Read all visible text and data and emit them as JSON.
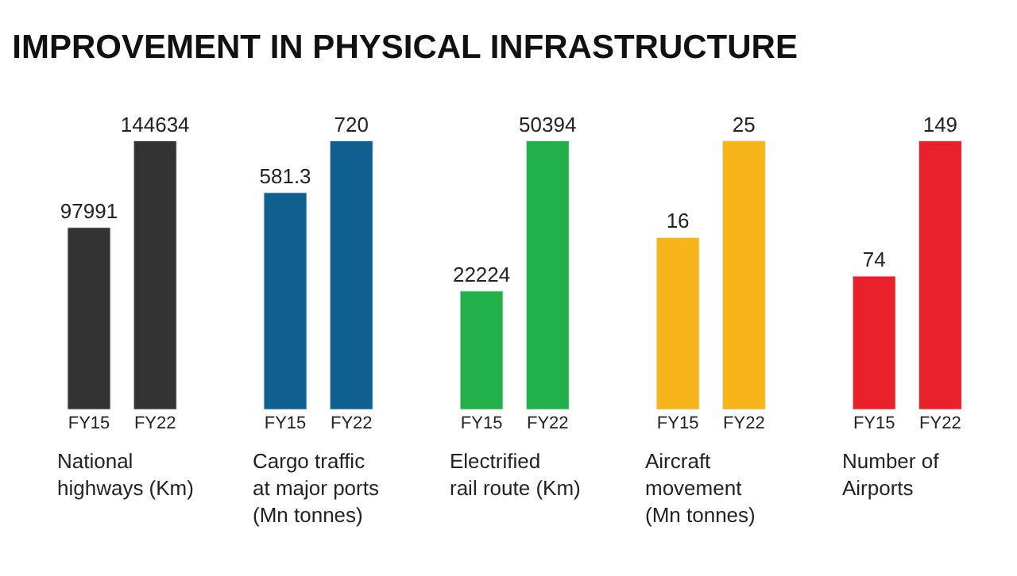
{
  "chart_data": [
    {
      "type": "bar",
      "title": "IMPROVEMENT IN PHYSICAL INFRASTRUCTURE",
      "categories": [
        "FY15",
        "FY22"
      ],
      "values": [
        97991,
        144634
      ],
      "colors": [
        "#333333",
        "#333333"
      ],
      "xlabel": "National highways (Km)",
      "data_labels": true
    },
    {
      "type": "bar",
      "categories": [
        "FY15",
        "FY22"
      ],
      "values": [
        581.3,
        720
      ],
      "colors": [
        "#0f5f8f",
        "#0f5f8f"
      ],
      "xlabel": "Cargo traffic at major ports (Mn tonnes)",
      "data_labels": true
    },
    {
      "type": "bar",
      "categories": [
        "FY15",
        "FY22"
      ],
      "values": [
        22224,
        50394
      ],
      "colors": [
        "#22b04a",
        "#22b04a"
      ],
      "xlabel": "Electrified rail route (Km)",
      "data_labels": true
    },
    {
      "type": "bar",
      "categories": [
        "FY15",
        "FY22"
      ],
      "values": [
        16,
        25
      ],
      "colors": [
        "#f7b51a",
        "#f7b51a"
      ],
      "xlabel": "Aircraft movement (Mn tonnes)",
      "data_labels": true
    },
    {
      "type": "bar",
      "categories": [
        "FY15",
        "FY22"
      ],
      "values": [
        74,
        149
      ],
      "colors": [
        "#e8212b",
        "#e8212b"
      ],
      "xlabel": "Number of Airports",
      "data_labels": true
    }
  ]
}
